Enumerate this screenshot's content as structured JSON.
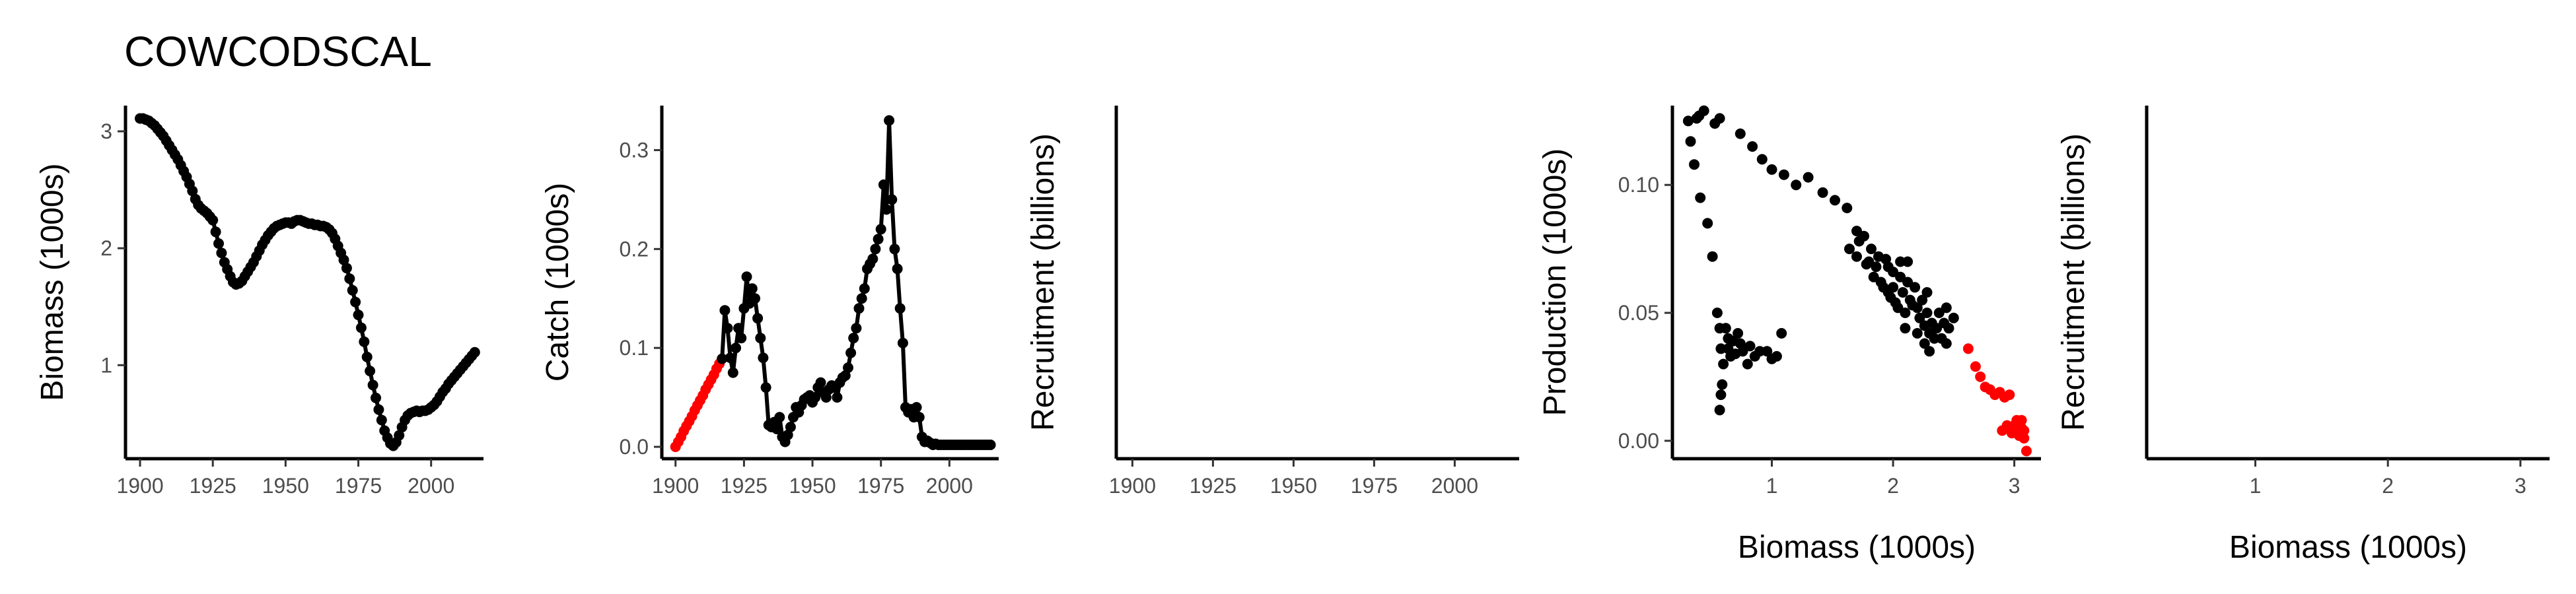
{
  "page": {
    "title": "COWCODSCAL"
  },
  "colors": {
    "primary": "#000000",
    "highlight": "#ff0000",
    "tick_text": "#4d4d4d"
  },
  "chart_data": [
    {
      "id": "biomass",
      "type": "line",
      "xlabel": "",
      "ylabel": "Biomass (1000s)",
      "xlim": [
        1895,
        2018
      ],
      "ylim": [
        0.2,
        3.22
      ],
      "xticks": [
        1900,
        1925,
        1950,
        1975,
        2000
      ],
      "yticks": [
        1,
        2,
        3
      ],
      "grid": false,
      "series": [
        {
          "color": "#000000",
          "markers": true,
          "line": true,
          "x": [
            1900,
            1901,
            1902,
            1903,
            1904,
            1905,
            1906,
            1907,
            1908,
            1909,
            1910,
            1911,
            1912,
            1913,
            1914,
            1915,
            1916,
            1917,
            1918,
            1919,
            1920,
            1921,
            1922,
            1923,
            1924,
            1925,
            1926,
            1927,
            1928,
            1929,
            1930,
            1931,
            1932,
            1933,
            1934,
            1935,
            1936,
            1937,
            1938,
            1939,
            1940,
            1941,
            1942,
            1943,
            1944,
            1945,
            1946,
            1947,
            1948,
            1949,
            1950,
            1951,
            1952,
            1953,
            1954,
            1955,
            1956,
            1957,
            1958,
            1959,
            1960,
            1961,
            1962,
            1963,
            1964,
            1965,
            1966,
            1967,
            1968,
            1969,
            1970,
            1971,
            1972,
            1973,
            1974,
            1975,
            1976,
            1977,
            1978,
            1979,
            1980,
            1981,
            1982,
            1983,
            1984,
            1985,
            1986,
            1987,
            1988,
            1989,
            1990,
            1991,
            1992,
            1993,
            1994,
            1995,
            1996,
            1997,
            1998,
            1999,
            2000,
            2001,
            2002,
            2003,
            2004,
            2005,
            2006,
            2007,
            2008,
            2009,
            2010,
            2011,
            2012,
            2013,
            2014,
            2015
          ],
          "y": [
            3.11,
            3.11,
            3.1,
            3.09,
            3.07,
            3.05,
            3.02,
            2.99,
            2.96,
            2.92,
            2.88,
            2.84,
            2.8,
            2.76,
            2.71,
            2.66,
            2.61,
            2.55,
            2.49,
            2.42,
            2.37,
            2.34,
            2.32,
            2.3,
            2.27,
            2.24,
            2.14,
            2.04,
            1.96,
            1.88,
            1.82,
            1.76,
            1.71,
            1.69,
            1.7,
            1.72,
            1.76,
            1.8,
            1.84,
            1.88,
            1.93,
            1.98,
            2.03,
            2.07,
            2.11,
            2.14,
            2.17,
            2.19,
            2.2,
            2.21,
            2.22,
            2.22,
            2.21,
            2.23,
            2.24,
            2.24,
            2.23,
            2.22,
            2.21,
            2.21,
            2.2,
            2.2,
            2.19,
            2.19,
            2.18,
            2.16,
            2.13,
            2.08,
            2.02,
            1.96,
            1.9,
            1.83,
            1.74,
            1.64,
            1.54,
            1.43,
            1.32,
            1.2,
            1.07,
            0.95,
            0.83,
            0.72,
            0.62,
            0.53,
            0.44,
            0.38,
            0.33,
            0.31,
            0.34,
            0.4,
            0.47,
            0.53,
            0.57,
            0.59,
            0.6,
            0.61,
            0.6,
            0.61,
            0.61,
            0.62,
            0.64,
            0.66,
            0.69,
            0.73,
            0.77,
            0.8,
            0.84,
            0.87,
            0.9,
            0.93,
            0.96,
            0.99,
            1.02,
            1.05,
            1.08,
            1.11
          ]
        }
      ]
    },
    {
      "id": "catch",
      "type": "line",
      "xlabel": "",
      "ylabel": "Catch (1000s)",
      "xlim": [
        1895,
        2018
      ],
      "ylim": [
        -0.012,
        0.345
      ],
      "xticks": [
        1900,
        1925,
        1950,
        1975,
        2000
      ],
      "yticks": [
        0.0,
        0.1,
        0.2,
        0.3
      ],
      "ytick_labels": [
        "0.0",
        "0.1",
        "0.2",
        "0.3"
      ],
      "grid": false,
      "series": [
        {
          "color": "#ff0000",
          "markers": true,
          "line": true,
          "x": [
            1900,
            1901,
            1902,
            1903,
            1904,
            1905,
            1906,
            1907,
            1908,
            1909,
            1910,
            1911,
            1912,
            1913,
            1914,
            1915,
            1916,
            1917
          ],
          "y": [
            0.0,
            0.005,
            0.01,
            0.016,
            0.021,
            0.026,
            0.031,
            0.037,
            0.042,
            0.047,
            0.052,
            0.058,
            0.063,
            0.068,
            0.073,
            0.079,
            0.084,
            0.089
          ]
        },
        {
          "color": "#000000",
          "markers": true,
          "line": true,
          "x": [
            1917,
            1918,
            1919,
            1920,
            1921,
            1922,
            1923,
            1924,
            1925,
            1926,
            1927,
            1928,
            1929,
            1930,
            1931,
            1932,
            1933,
            1934,
            1935,
            1936,
            1937,
            1938,
            1939,
            1940,
            1941,
            1942,
            1943,
            1944,
            1945,
            1946,
            1947,
            1948,
            1949,
            1950,
            1951,
            1952,
            1953,
            1954,
            1955,
            1956,
            1957,
            1958,
            1959,
            1960,
            1961,
            1962,
            1963,
            1964,
            1965,
            1966,
            1967,
            1968,
            1969,
            1970,
            1971,
            1972,
            1973,
            1974,
            1975,
            1976,
            1977,
            1978,
            1979,
            1980,
            1981,
            1982,
            1983,
            1984,
            1985,
            1986,
            1987,
            1988,
            1989,
            1990,
            1991,
            1992,
            1993,
            1994,
            1995,
            1996,
            1997,
            1998,
            1999,
            2000,
            2001,
            2002,
            2003,
            2004,
            2005,
            2006,
            2007,
            2008,
            2009,
            2010,
            2011,
            2012,
            2013,
            2014,
            2015
          ],
          "y": [
            0.089,
            0.138,
            0.12,
            0.09,
            0.075,
            0.1,
            0.12,
            0.11,
            0.14,
            0.172,
            0.145,
            0.16,
            0.15,
            0.13,
            0.11,
            0.09,
            0.06,
            0.022,
            0.02,
            0.025,
            0.018,
            0.03,
            0.01,
            0.005,
            0.012,
            0.02,
            0.03,
            0.04,
            0.035,
            0.042,
            0.048,
            0.05,
            0.052,
            0.045,
            0.05,
            0.06,
            0.065,
            0.055,
            0.05,
            0.058,
            0.062,
            0.06,
            0.05,
            0.065,
            0.07,
            0.072,
            0.08,
            0.095,
            0.11,
            0.12,
            0.14,
            0.15,
            0.16,
            0.18,
            0.185,
            0.19,
            0.2,
            0.21,
            0.22,
            0.265,
            0.24,
            0.33,
            0.25,
            0.2,
            0.18,
            0.14,
            0.105,
            0.04,
            0.035,
            0.038,
            0.03,
            0.04,
            0.03,
            0.01,
            0.005,
            0.006,
            0.004,
            0.002,
            0.003,
            0.002,
            0.002,
            0.002,
            0.002,
            0.002,
            0.002,
            0.002,
            0.002,
            0.002,
            0.002,
            0.002,
            0.002,
            0.002,
            0.002,
            0.002,
            0.002,
            0.002,
            0.002,
            0.002,
            0.002
          ]
        }
      ]
    },
    {
      "id": "recruit_year",
      "type": "scatter",
      "xlabel": "",
      "ylabel": "Recruitment (billions)",
      "xlim": [
        1895,
        2020
      ],
      "xticks": [
        1900,
        1925,
        1950,
        1975,
        2000
      ],
      "yticks": [],
      "grid": false,
      "series": []
    },
    {
      "id": "production",
      "type": "scatter",
      "xlabel": "Biomass (1000s)",
      "ylabel": "Production (1000s)",
      "xlim": [
        0.18,
        3.22
      ],
      "ylim": [
        -0.007,
        0.131
      ],
      "xticks": [
        1,
        2,
        3
      ],
      "yticks": [
        0.0,
        0.05,
        0.1
      ],
      "ytick_labels": [
        "0.00",
        "0.05",
        "0.10"
      ],
      "grid": false,
      "series": [
        {
          "color": "#000000",
          "points": [
            [
              0.31,
              0.125
            ],
            [
              0.33,
              0.117
            ],
            [
              0.36,
              0.108
            ],
            [
              0.38,
              0.126
            ],
            [
              0.4,
              0.127
            ],
            [
              0.44,
              0.129
            ],
            [
              0.41,
              0.095
            ],
            [
              0.47,
              0.085
            ],
            [
              0.51,
              0.072
            ],
            [
              0.53,
              0.124
            ],
            [
              0.57,
              0.126
            ],
            [
              0.55,
              0.05
            ],
            [
              0.57,
              0.044
            ],
            [
              0.58,
              0.036
            ],
            [
              0.6,
              0.03
            ],
            [
              0.59,
              0.022
            ],
            [
              0.58,
              0.018
            ],
            [
              0.57,
              0.012
            ],
            [
              0.62,
              0.044
            ],
            [
              0.64,
              0.04
            ],
            [
              0.68,
              0.039
            ],
            [
              0.72,
              0.042
            ],
            [
              0.74,
              0.038
            ],
            [
              0.76,
              0.035
            ],
            [
              0.8,
              0.03
            ],
            [
              0.86,
              0.033
            ],
            [
              0.9,
              0.035
            ],
            [
              0.96,
              0.035
            ],
            [
              1.0,
              0.032
            ],
            [
              1.04,
              0.033
            ],
            [
              1.08,
              0.042
            ],
            [
              0.64,
              0.036
            ],
            [
              0.7,
              0.034
            ],
            [
              0.82,
              0.037
            ],
            [
              0.66,
              0.033
            ],
            [
              0.74,
              0.12
            ],
            [
              0.84,
              0.115
            ],
            [
              0.92,
              0.11
            ],
            [
              1.0,
              0.106
            ],
            [
              1.1,
              0.104
            ],
            [
              1.2,
              0.1
            ],
            [
              1.3,
              0.103
            ],
            [
              1.42,
              0.097
            ],
            [
              1.52,
              0.094
            ],
            [
              1.62,
              0.091
            ],
            [
              1.7,
              0.082
            ],
            [
              1.76,
              0.08
            ],
            [
              1.82,
              0.075
            ],
            [
              1.88,
              0.072
            ],
            [
              1.94,
              0.071
            ],
            [
              2.0,
              0.066
            ],
            [
              2.06,
              0.064
            ],
            [
              2.12,
              0.062
            ],
            [
              1.64,
              0.075
            ],
            [
              1.72,
              0.078
            ],
            [
              1.8,
              0.07
            ],
            [
              1.86,
              0.068
            ],
            [
              1.92,
              0.06
            ],
            [
              1.98,
              0.056
            ],
            [
              2.04,
              0.052
            ],
            [
              2.1,
              0.05
            ],
            [
              2.16,
              0.053
            ],
            [
              2.22,
              0.048
            ],
            [
              2.26,
              0.045
            ],
            [
              2.3,
              0.042
            ],
            [
              2.34,
              0.04
            ],
            [
              2.38,
              0.05
            ],
            [
              2.42,
              0.046
            ],
            [
              2.46,
              0.044
            ],
            [
              2.5,
              0.048
            ],
            [
              1.7,
              0.072
            ],
            [
              1.78,
              0.069
            ],
            [
              1.84,
              0.064
            ],
            [
              1.9,
              0.062
            ],
            [
              1.96,
              0.058
            ],
            [
              2.02,
              0.054
            ],
            [
              2.08,
              0.058
            ],
            [
              2.14,
              0.055
            ],
            [
              2.2,
              0.052
            ],
            [
              2.24,
              0.055
            ],
            [
              2.28,
              0.05
            ],
            [
              2.32,
              0.046
            ],
            [
              2.18,
              0.06
            ],
            [
              2.12,
              0.07
            ],
            [
              1.96,
              0.068
            ],
            [
              2.06,
              0.07
            ],
            [
              2.36,
              0.044
            ],
            [
              2.4,
              0.04
            ],
            [
              2.44,
              0.038
            ],
            [
              2.0,
              0.06
            ],
            [
              2.2,
              0.042
            ],
            [
              2.26,
              0.038
            ],
            [
              2.1,
              0.044
            ],
            [
              2.28,
              0.058
            ],
            [
              2.44,
              0.052
            ],
            [
              2.3,
              0.035
            ]
          ]
        },
        {
          "color": "#ff0000",
          "points": [
            [
              2.62,
              0.036
            ],
            [
              2.68,
              0.029
            ],
            [
              2.72,
              0.025
            ],
            [
              2.76,
              0.021
            ],
            [
              2.8,
              0.02
            ],
            [
              2.84,
              0.018
            ],
            [
              2.88,
              0.019
            ],
            [
              2.92,
              0.017
            ],
            [
              2.96,
              0.018
            ],
            [
              2.9,
              0.004
            ],
            [
              2.94,
              0.006
            ],
            [
              2.98,
              0.003
            ],
            [
              3.0,
              0.006
            ],
            [
              3.02,
              0.005
            ],
            [
              3.04,
              0.002
            ],
            [
              3.06,
              0.008
            ],
            [
              3.08,
              0.001
            ],
            [
              3.1,
              -0.004
            ],
            [
              3.02,
              0.008
            ],
            [
              3.06,
              0.005
            ],
            [
              3.08,
              0.004
            ]
          ]
        }
      ]
    },
    {
      "id": "recruit_biomass",
      "type": "scatter",
      "xlabel": "Biomass (1000s)",
      "ylabel": "Recruitment (billions)",
      "xlim": [
        0.18,
        3.22
      ],
      "xticks": [
        1,
        2,
        3
      ],
      "yticks": [],
      "grid": false,
      "series": []
    }
  ]
}
